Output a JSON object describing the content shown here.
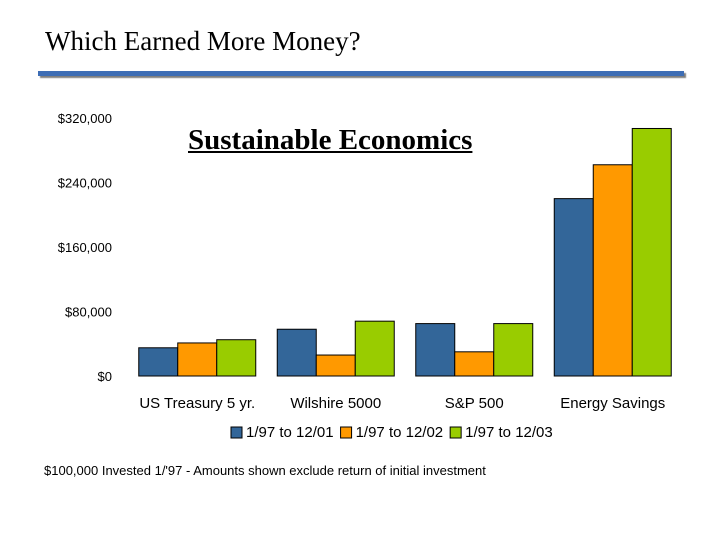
{
  "slide": {
    "title": "Which Earned More Money?",
    "footnote": "$100,000 Invested 1/'97 - Amounts shown exclude return of initial investment"
  },
  "chart_data": {
    "type": "bar",
    "title": "Sustainable Economics",
    "xlabel": "",
    "ylabel": "",
    "categories": [
      "US Treasury 5 yr.",
      "Wilshire 5000",
      "S&P 500",
      "Energy Savings"
    ],
    "series": [
      {
        "name": "1/97 to 12/01",
        "color": "#336699",
        "values": [
          35000,
          58000,
          65000,
          220000
        ]
      },
      {
        "name": "1/97 to 12/02",
        "color": "#ff9900",
        "values": [
          41000,
          26000,
          30000,
          262000
        ]
      },
      {
        "name": "1/97 to 12/03",
        "color": "#99cc00",
        "values": [
          45000,
          68000,
          65000,
          307000
        ]
      }
    ],
    "ylim": [
      0,
      320000
    ],
    "yticks": [
      0,
      80000,
      160000,
      240000,
      320000
    ],
    "ytick_labels": [
      "$0",
      "$80,000",
      "$160,000",
      "$240,000",
      "$320,000"
    ],
    "grid": false,
    "legend": "bottom"
  }
}
